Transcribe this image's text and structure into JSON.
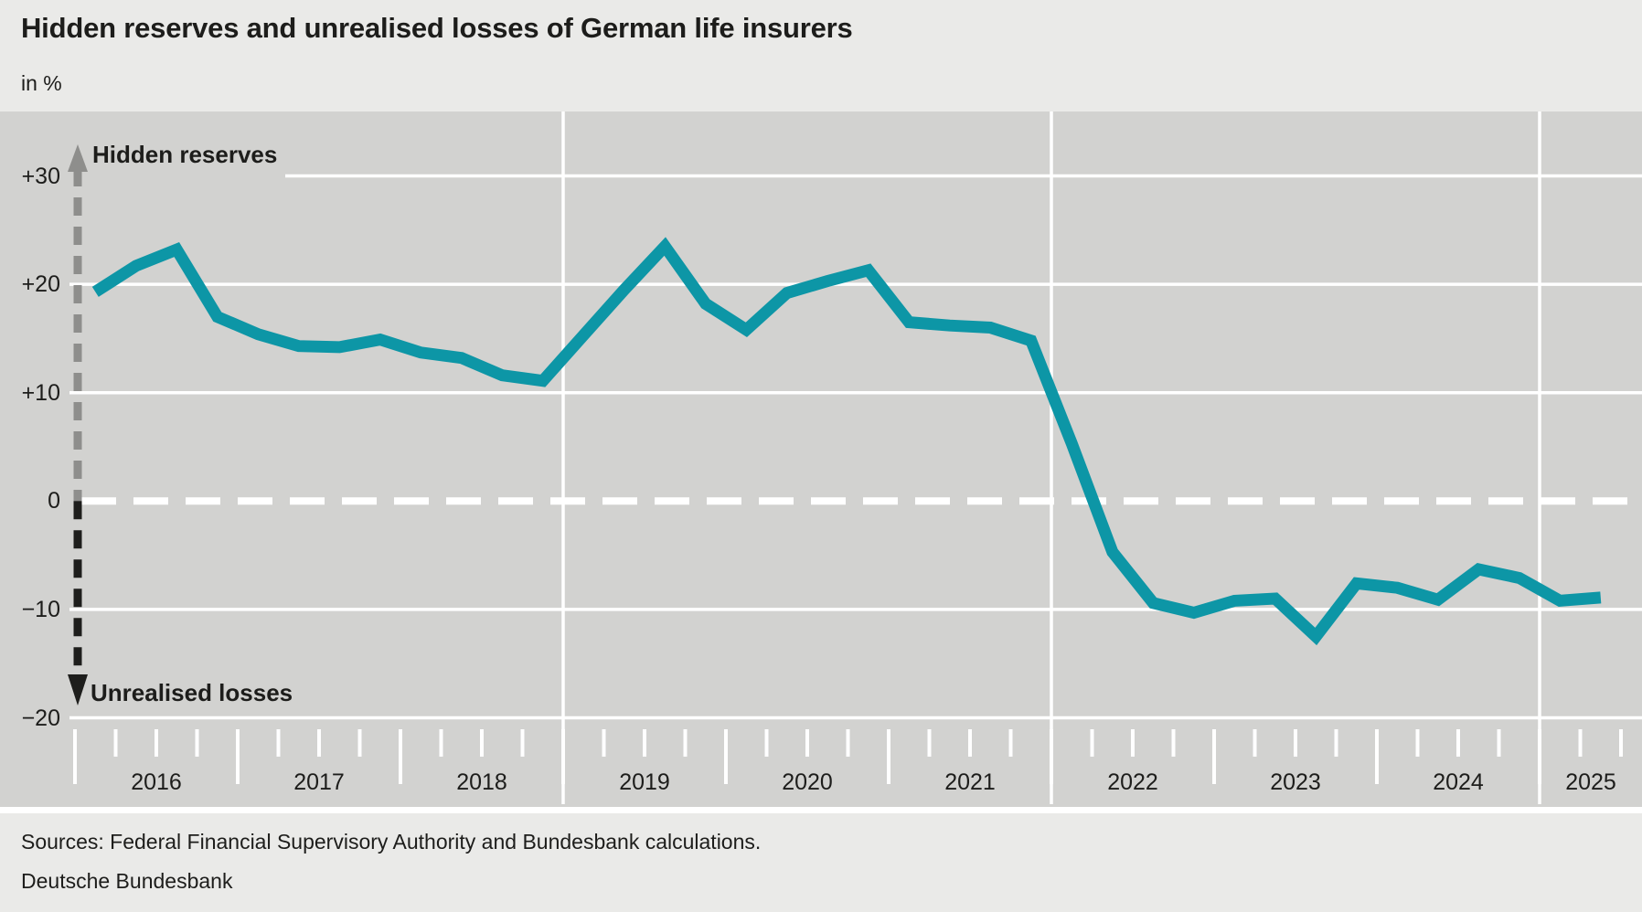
{
  "header": {
    "title": "Hidden reserves and unrealised losses of German life insurers",
    "unit_label": "in %"
  },
  "chart_annotations": {
    "up_label": "Hidden reserves",
    "down_label": "Unrealised losses"
  },
  "footer": {
    "sources": "Sources: Federal Financial Supervisory Authority and Bundesbank calculations.",
    "publisher": "Deutsche Bundesbank"
  },
  "colors": {
    "line": "#0d96a6",
    "plot_background": "#d2d2d0",
    "page_background": "#eaeae8",
    "gridline": "#ffffff",
    "text": "#1d1d1b",
    "arrow_up_gray": "#8e8e8c",
    "arrow_down_black": "#1e1e1c"
  },
  "chart_data": {
    "type": "line",
    "title": "Hidden reserves and unrealised losses of German life insurers",
    "unit": "%",
    "series_name": "Hidden reserves (+) / unrealised losses (−)",
    "quarters": [
      "2016 Q1",
      "2016 Q2",
      "2016 Q3",
      "2016 Q4",
      "2017 Q1",
      "2017 Q2",
      "2017 Q3",
      "2017 Q4",
      "2018 Q1",
      "2018 Q2",
      "2018 Q3",
      "2018 Q4",
      "2019 Q1",
      "2019 Q2",
      "2019 Q3",
      "2019 Q4",
      "2020 Q1",
      "2020 Q2",
      "2020 Q3",
      "2020 Q4",
      "2021 Q1",
      "2021 Q2",
      "2021 Q3",
      "2021 Q4",
      "2022 Q1",
      "2022 Q2",
      "2022 Q3",
      "2022 Q4",
      "2023 Q1",
      "2023 Q2",
      "2023 Q3",
      "2023 Q4",
      "2024 Q1",
      "2024 Q2",
      "2024 Q3",
      "2024 Q4",
      "2025 Q1",
      "2025 Q2"
    ],
    "values": [
      19.3,
      21.7,
      23.2,
      17.0,
      15.4,
      14.3,
      14.2,
      14.9,
      13.7,
      13.2,
      11.6,
      11.1,
      15.3,
      19.5,
      23.5,
      18.2,
      15.8,
      19.2,
      20.3,
      21.3,
      16.5,
      16.2,
      16.0,
      14.8,
      5.3,
      -4.7,
      -9.4,
      -10.3,
      -9.2,
      -9.0,
      -12.5,
      -7.6,
      -8.0,
      -9.1,
      -6.3,
      -7.1,
      -9.2,
      -8.9
    ],
    "ylim": [
      -20,
      30
    ],
    "yticks": {
      "values": [
        30,
        20,
        10,
        0,
        -10,
        -20
      ],
      "labels": [
        "+30",
        "+20",
        "+10",
        "0",
        "−10",
        "−20"
      ]
    },
    "x_years": [
      2016,
      2017,
      2018,
      2019,
      2020,
      2021,
      2022,
      2023,
      2024,
      2025
    ],
    "x_gridline_years": [
      2019,
      2022,
      2025
    ],
    "grid": "white gridlines on gray, dashed white zero line",
    "legend": "none"
  }
}
